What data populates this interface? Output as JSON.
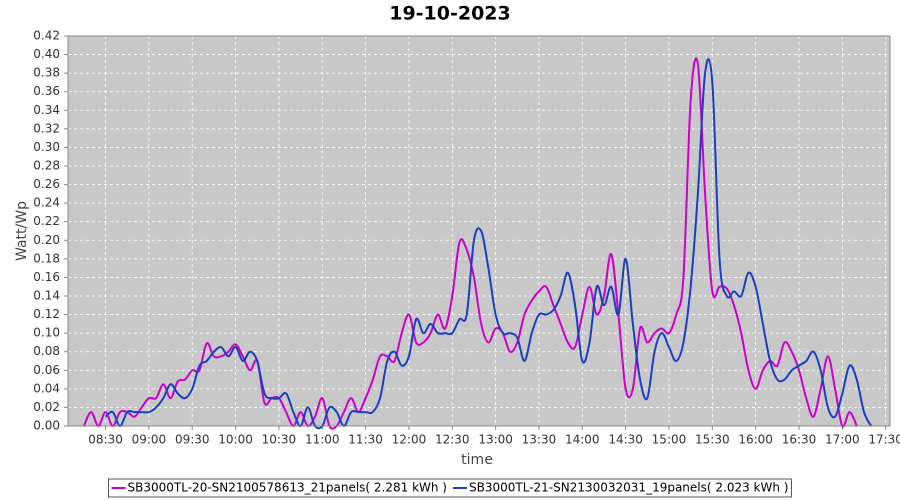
{
  "chart_data": {
    "type": "line",
    "title": "19-10-2023",
    "xlabel": "time",
    "ylabel": "Watt/Wp",
    "xlim": [
      "08:04",
      "17:33"
    ],
    "xticks": [
      "08:30",
      "09:00",
      "09:30",
      "10:00",
      "10:30",
      "11:00",
      "11:30",
      "12:00",
      "12:30",
      "13:00",
      "13:30",
      "14:00",
      "14:30",
      "15:00",
      "15:30",
      "16:00",
      "16:30",
      "17:00",
      "17:30"
    ],
    "ylim": [
      0,
      0.42
    ],
    "yticks": [
      {
        "value": 0,
        "label": "0.00"
      },
      {
        "value": 0.02,
        "label": "0.02"
      },
      {
        "value": 0.04,
        "label": "0.04"
      },
      {
        "value": 0.06,
        "label": "0.06"
      },
      {
        "value": 0.08,
        "label": "0.08"
      },
      {
        "value": 0.1,
        "label": "0.10"
      },
      {
        "value": 0.12,
        "label": "0.12"
      },
      {
        "value": 0.14,
        "label": "0.14"
      },
      {
        "value": 0.16,
        "label": "0.16"
      },
      {
        "value": 0.18,
        "label": "0.18"
      },
      {
        "value": 0.2,
        "label": "0.20"
      },
      {
        "value": 0.22,
        "label": "0.22"
      },
      {
        "value": 0.24,
        "label": "0.24"
      },
      {
        "value": 0.26,
        "label": "0.26"
      },
      {
        "value": 0.28,
        "label": "0.28"
      },
      {
        "value": 0.3,
        "label": "0.30"
      },
      {
        "value": 0.32,
        "label": "0.32"
      },
      {
        "value": 0.34,
        "label": "0.34"
      },
      {
        "value": 0.36,
        "label": "0.36"
      },
      {
        "value": 0.38,
        "label": "0.38"
      },
      {
        "value": 0.4,
        "label": "0.40"
      },
      {
        "value": 0.42,
        "label": "0.42"
      }
    ],
    "grid": true,
    "x": [
      "08:15",
      "08:20",
      "08:25",
      "08:30",
      "08:35",
      "08:40",
      "08:45",
      "08:50",
      "08:55",
      "09:00",
      "09:05",
      "09:10",
      "09:15",
      "09:20",
      "09:25",
      "09:30",
      "09:35",
      "09:40",
      "09:45",
      "09:50",
      "09:55",
      "10:00",
      "10:05",
      "10:10",
      "10:15",
      "10:20",
      "10:25",
      "10:30",
      "10:35",
      "10:40",
      "10:45",
      "10:50",
      "10:55",
      "11:00",
      "11:05",
      "11:10",
      "11:15",
      "11:20",
      "11:25",
      "11:30",
      "11:35",
      "11:40",
      "11:45",
      "11:50",
      "11:55",
      "12:00",
      "12:05",
      "12:10",
      "12:15",
      "12:20",
      "12:25",
      "12:30",
      "12:35",
      "12:40",
      "12:45",
      "12:50",
      "12:55",
      "13:00",
      "13:05",
      "13:10",
      "13:15",
      "13:20",
      "13:25",
      "13:30",
      "13:35",
      "13:40",
      "13:45",
      "13:50",
      "13:55",
      "14:00",
      "14:05",
      "14:10",
      "14:15",
      "14:20",
      "14:25",
      "14:30",
      "14:35",
      "14:40",
      "14:45",
      "14:50",
      "14:55",
      "15:00",
      "15:05",
      "15:10",
      "15:15",
      "15:20",
      "15:25",
      "15:30",
      "15:35",
      "15:40",
      "15:45",
      "15:50",
      "15:55",
      "16:00",
      "16:05",
      "16:10",
      "16:15",
      "16:20",
      "16:25",
      "16:30",
      "16:35",
      "16:40",
      "16:45",
      "16:50",
      "16:55",
      "17:00",
      "17:05",
      "17:10",
      "17:15",
      "17:20"
    ],
    "series": [
      {
        "name": "SB3000TL-20-SN2100578613_21panels( 2.281 kWh )",
        "color": "#cc00cc",
        "values": [
          0,
          0.015,
          0,
          0.015,
          0,
          0.015,
          0.015,
          0.01,
          0.02,
          0.03,
          0.03,
          0.045,
          0.03,
          0.048,
          0.05,
          0.06,
          0.06,
          0.089,
          0.075,
          0.075,
          0.08,
          0.088,
          0.075,
          0.06,
          0.07,
          0.025,
          0.03,
          0.03,
          0.015,
          0,
          0.015,
          0,
          0.01,
          0.03,
          0,
          0,
          0.015,
          0.03,
          0.015,
          0.03,
          0.05,
          0.075,
          0.075,
          0.07,
          0.1,
          0.12,
          0.09,
          0.09,
          0.1,
          0.12,
          0.105,
          0.14,
          0.198,
          0.19,
          0.16,
          0.11,
          0.09,
          0.105,
          0.1,
          0.08,
          0.09,
          0.12,
          0.135,
          0.145,
          0.15,
          0.13,
          0.11,
          0.09,
          0.085,
          0.12,
          0.15,
          0.12,
          0.14,
          0.185,
          0.12,
          0.04,
          0.04,
          0.105,
          0.09,
          0.1,
          0.105,
          0.1,
          0.12,
          0.16,
          0.35,
          0.39,
          0.25,
          0.145,
          0.15,
          0.148,
          0.13,
          0.1,
          0.06,
          0.04,
          0.06,
          0.07,
          0.065,
          0.09,
          0.08,
          0.06,
          0.03,
          0.01,
          0.04,
          0.075,
          0.04,
          0,
          0.015,
          0,
          null,
          null
        ]
      },
      {
        "name": "SB3000TL-21-SN2130032031_19panels( 2.023 kWh )",
        "color": "#1a3fc0",
        "values": [
          null,
          null,
          null,
          0.01,
          0.015,
          0,
          0.015,
          0.015,
          0.015,
          0.015,
          0.02,
          0.03,
          0.045,
          0.035,
          0.03,
          0.04,
          0.065,
          0.07,
          0.08,
          0.085,
          0.075,
          0.085,
          0.07,
          0.08,
          0.07,
          0.035,
          0.03,
          0.03,
          0.035,
          0.015,
          0,
          0.02,
          0,
          0,
          0.02,
          0.015,
          0,
          0.015,
          0.015,
          0.015,
          0.015,
          0.03,
          0.07,
          0.08,
          0.065,
          0.075,
          0.115,
          0.1,
          0.11,
          0.1,
          0.1,
          0.1,
          0.115,
          0.12,
          0.2,
          0.21,
          0.17,
          0.12,
          0.1,
          0.1,
          0.095,
          0.07,
          0.1,
          0.12,
          0.12,
          0.125,
          0.14,
          0.165,
          0.13,
          0.07,
          0.09,
          0.15,
          0.13,
          0.15,
          0.12,
          0.18,
          0.11,
          0.05,
          0.03,
          0.08,
          0.1,
          0.085,
          0.07,
          0.09,
          0.15,
          0.25,
          0.38,
          0.37,
          0.18,
          0.14,
          0.145,
          0.14,
          0.165,
          0.15,
          0.11,
          0.07,
          0.05,
          0.05,
          0.06,
          0.065,
          0.07,
          0.08,
          0.06,
          0.02,
          0.01,
          0.035,
          0.065,
          0.05,
          0.015,
          0
        ]
      }
    ]
  }
}
